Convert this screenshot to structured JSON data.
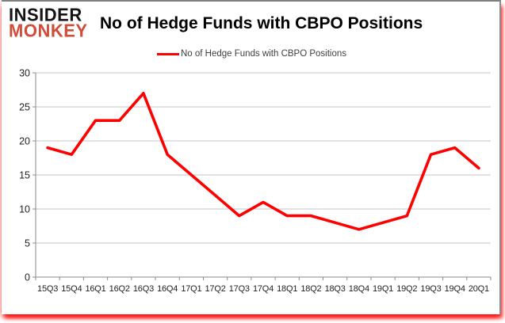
{
  "logo": {
    "line1": "INSIDER",
    "line2": "MONKEY"
  },
  "title": "No of Hedge Funds with CBPO Positions",
  "legend": {
    "label": "No of Hedge Funds with CBPO Positions",
    "swatch_color": "#FF0000"
  },
  "colors": {
    "series_line": "#FF0000",
    "logo_insider": "#141414",
    "logo_monkey": "#D04B38",
    "gridline": "#C6C6C6",
    "axis": "#898989",
    "axis_text": "#1F1F1F",
    "legend_text": "#3F3F3F",
    "card_border": "#7F7F7F",
    "shadow": "#FF0000"
  },
  "chart_data": {
    "type": "line",
    "title": "No of Hedge Funds with CBPO Positions",
    "xlabel": "",
    "ylabel": "",
    "categories": [
      "15Q3",
      "15Q4",
      "16Q1",
      "16Q2",
      "16Q3",
      "16Q4",
      "17Q1",
      "17Q2",
      "17Q3",
      "17Q4",
      "18Q1",
      "18Q2",
      "18Q3",
      "18Q4",
      "19Q1",
      "19Q2",
      "19Q3",
      "19Q4",
      "20Q1"
    ],
    "series": [
      {
        "name": "No of Hedge Funds with CBPO Positions",
        "color": "#FF0000",
        "values": [
          19,
          18,
          23,
          23,
          27,
          18,
          15,
          12,
          9,
          11,
          9,
          9,
          8,
          7,
          8,
          9,
          18,
          19,
          16
        ]
      }
    ],
    "ylim": [
      0,
      30
    ],
    "ytick_step": 5,
    "grid": true,
    "legend_position": "top-center",
    "markers": false
  }
}
